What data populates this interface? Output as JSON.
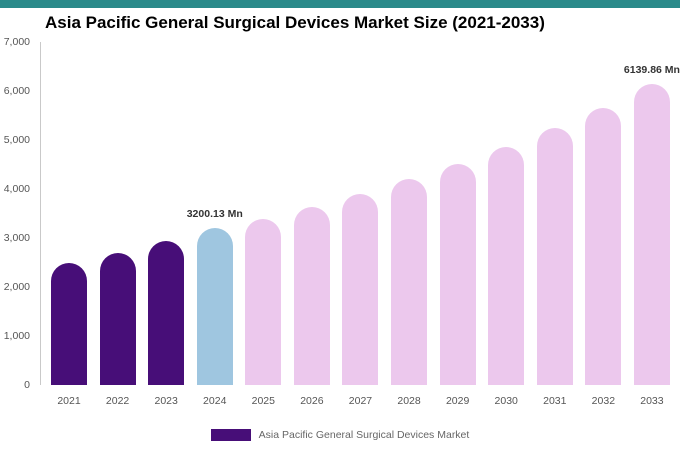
{
  "page": {
    "top_strip_color": "#2a8a8a"
  },
  "chart_data": {
    "type": "bar",
    "title": "Asia Pacific General Surgical Devices Market Size (2021-2033)",
    "categories": [
      "2021",
      "2022",
      "2023",
      "2024",
      "2025",
      "2026",
      "2027",
      "2028",
      "2029",
      "2030",
      "2031",
      "2032",
      "2033"
    ],
    "values": [
      2500,
      2700,
      2930,
      3200.13,
      3390,
      3630,
      3900,
      4200,
      4510,
      4860,
      5240,
      5650,
      6139.86
    ],
    "unit": "Mn",
    "ylim": [
      0,
      7000
    ],
    "yticks": [
      0,
      1000,
      2000,
      3000,
      4000,
      5000,
      6000,
      7000
    ],
    "bar_labels": {
      "2024": "3200.13 Mn",
      "2033": "6139.86 Mn"
    },
    "bar_colors": [
      "#470e78",
      "#470e78",
      "#470e78",
      "#9fc6e0",
      "#ecc8ed",
      "#ecc8ed",
      "#ecc8ed",
      "#ecc8ed",
      "#ecc8ed",
      "#ecc8ed",
      "#ecc8ed",
      "#ecc8ed",
      "#ecc8ed"
    ],
    "grid": false,
    "legend_position": "bottom"
  },
  "legend": {
    "swatch_color": "#470e78",
    "label": "Asia Pacific General Surgical Devices Market"
  }
}
